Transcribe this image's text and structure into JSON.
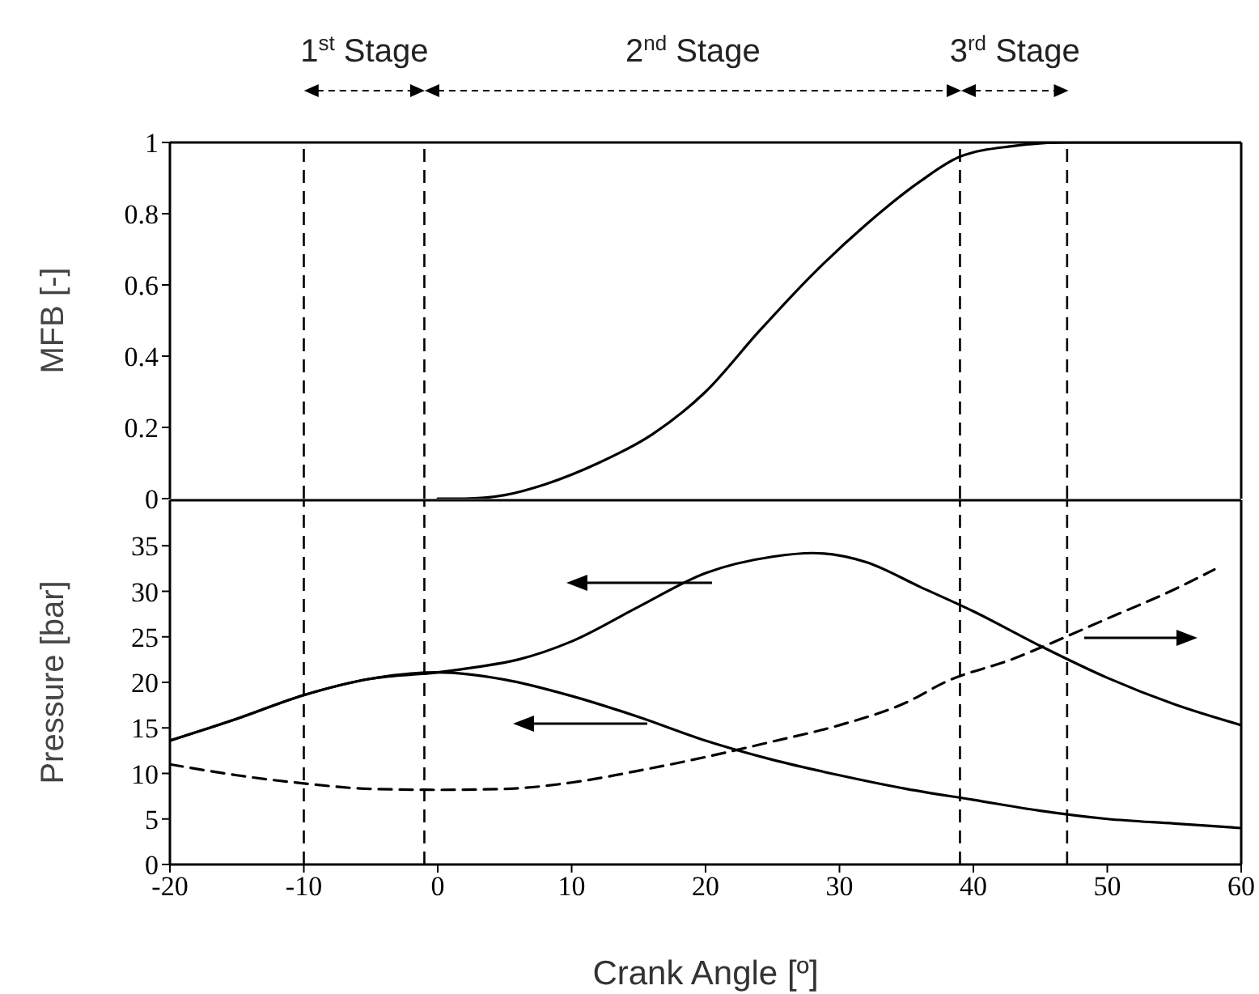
{
  "chart_data": [
    {
      "type": "line",
      "ylabel": "MFB [-]",
      "annotations": [
        "1$^{st}$ Stage",
        "2$^{nd}$ Stage",
        "3$^{rd}$ Stage"
      ],
      "xlim": [
        -20,
        60
      ],
      "xticks": [
        -20,
        -10,
        0,
        10,
        20,
        30,
        40,
        50,
        60
      ],
      "ylim": [
        0,
        1
      ],
      "yticks": [
        0,
        0.2,
        0.4,
        0.6,
        0.8,
        1
      ],
      "tick_labels": "y",
      "marker": "none",
      "line_style": "solid",
      "series": [
        {
          "color": "#000000",
          "x": [
            0,
            2,
            5,
            8,
            12,
            16,
            20,
            24,
            28,
            32,
            36,
            39,
            43,
            47,
            60
          ],
          "values": [
            0,
            0,
            0.01,
            0.04,
            0.1,
            0.18,
            0.3,
            0.47,
            0.63,
            0.77,
            0.89,
            0.96,
            0.99,
            1,
            1
          ]
        }
      ],
      "ref_lines": [
        {
          "axis": "x",
          "value": -10,
          "line_style": "dashed",
          "color": "#000000"
        },
        {
          "axis": "x",
          "value": -1,
          "line_style": "dashed",
          "color": "#000000"
        },
        {
          "axis": "x",
          "value": 39,
          "line_style": "dashed",
          "color": "#000000"
        },
        {
          "axis": "x",
          "value": 47,
          "line_style": "dashed",
          "color": "#000000"
        }
      ]
    },
    {
      "type": "line",
      "xlabel": "Crank Angle [º]",
      "ylabel": "Pressure [bar]",
      "xlim": [
        -20,
        60
      ],
      "xticks": [
        -20,
        -10,
        0,
        10,
        20,
        30,
        40,
        50,
        60
      ],
      "ylim": [
        0,
        40
      ],
      "yticks": [
        0,
        5,
        10,
        15,
        20,
        25,
        30,
        35
      ],
      "marker": "none",
      "line_style": "solid",
      "series": [
        {
          "color": "#000000",
          "x": [
            -20,
            -15,
            -10,
            -5,
            0,
            3,
            6,
            10,
            15,
            20,
            25,
            28,
            32,
            36,
            40,
            45,
            50,
            55,
            60
          ],
          "values": [
            13.6,
            16,
            18.6,
            20.4,
            21.1,
            21.7,
            22.5,
            24.5,
            28.3,
            32,
            33.8,
            34.2,
            33.2,
            30.5,
            27.8,
            24,
            20.5,
            17.6,
            15.3
          ]
        },
        {
          "color": "#000000",
          "x": [
            -20,
            -15,
            -10,
            -5,
            0,
            5,
            10,
            15,
            20,
            25,
            30,
            35,
            40,
            45,
            50,
            55,
            60
          ],
          "values": [
            13.6,
            16,
            18.6,
            20.4,
            21.1,
            20.3,
            18.5,
            16.2,
            13.6,
            11.5,
            9.8,
            8.3,
            7.1,
            5.9,
            5,
            4.5,
            4
          ]
        },
        {
          "color": "#000000",
          "line_style": "dashed",
          "x": [
            -20,
            -15,
            -10,
            -5,
            0,
            5,
            10,
            15,
            20,
            25,
            30,
            35,
            38,
            43,
            45,
            50,
            55,
            58
          ],
          "values": [
            11,
            9.8,
            8.9,
            8.3,
            8.2,
            8.3,
            9,
            10.3,
            11.8,
            13.5,
            15.3,
            17.8,
            20.1,
            22.6,
            23.8,
            27,
            30.2,
            32.4
          ]
        }
      ],
      "ref_lines": [
        {
          "axis": "x",
          "value": -10,
          "line_style": "dashed",
          "color": "#000000"
        },
        {
          "axis": "x",
          "value": -1,
          "line_style": "dashed",
          "color": "#000000"
        },
        {
          "axis": "x",
          "value": 39,
          "line_style": "dashed",
          "color": "#000000"
        },
        {
          "axis": "x",
          "value": 47,
          "line_style": "dashed",
          "color": "#000000"
        }
      ]
    }
  ]
}
